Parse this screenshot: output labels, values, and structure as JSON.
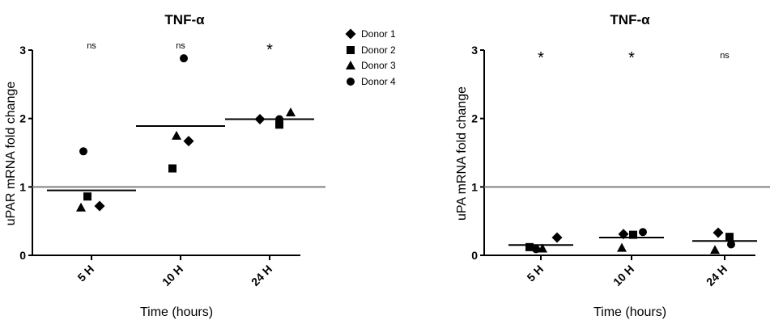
{
  "chart_data": [
    {
      "type": "scatter",
      "title": "TNF-α",
      "xlabel": "Time (hours)",
      "ylabel": "uPAR mRNA fold change",
      "ylim": [
        0,
        3
      ],
      "yticks": [
        0,
        1,
        2,
        3
      ],
      "categories": [
        "5 H",
        "10 H",
        "24 H"
      ],
      "reference_line": 1,
      "series": [
        {
          "name": "Donor 1",
          "marker": "diamond",
          "values": [
            0.72,
            1.67,
            1.99
          ]
        },
        {
          "name": "Donor 2",
          "marker": "square",
          "values": [
            0.86,
            1.27,
            1.91
          ]
        },
        {
          "name": "Donor 3",
          "marker": "triangle",
          "values": [
            0.7,
            1.75,
            2.09
          ]
        },
        {
          "name": "Donor 4",
          "marker": "circle",
          "values": [
            1.52,
            2.88,
            1.99
          ]
        }
      ],
      "means": [
        0.95,
        1.89,
        1.99
      ],
      "significance": [
        "ns",
        "ns",
        "*"
      ],
      "legend_position": "right"
    },
    {
      "type": "scatter",
      "title": "TNF-α",
      "xlabel": "Time (hours)",
      "ylabel": "uPA mRNA fold change",
      "ylim": [
        0,
        3
      ],
      "yticks": [
        0,
        1,
        2,
        3
      ],
      "categories": [
        "5 H",
        "10 H",
        "24 H"
      ],
      "reference_line": 1,
      "series": [
        {
          "name": "Donor 1",
          "marker": "diamond",
          "values": [
            0.26,
            0.31,
            0.33
          ]
        },
        {
          "name": "Donor 2",
          "marker": "square",
          "values": [
            0.12,
            0.3,
            0.27
          ]
        },
        {
          "name": "Donor 3",
          "marker": "triangle",
          "values": [
            0.1,
            0.11,
            0.08
          ]
        },
        {
          "name": "Donor 4",
          "marker": "circle",
          "values": [
            0.09,
            0.34,
            0.16
          ]
        }
      ],
      "means": [
        0.15,
        0.26,
        0.21
      ],
      "significance": [
        "*",
        "*",
        "ns"
      ]
    }
  ]
}
